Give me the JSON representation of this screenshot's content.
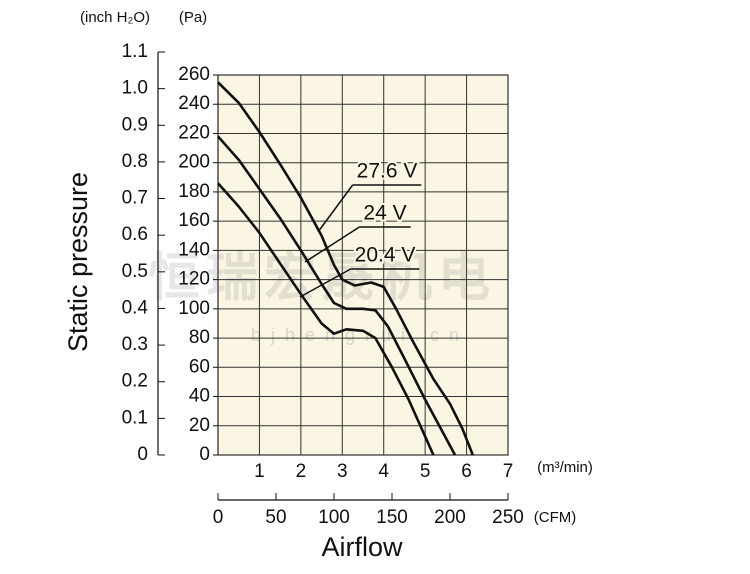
{
  "chart_data": {
    "type": "line",
    "y_label": "Static pressure",
    "x_label": "Airflow",
    "y_unit": "(Pa)",
    "y2_unit": "(inch H₂O)",
    "x_unit": "(m³/min)",
    "x2_unit": "(CFM)",
    "watermark": "恒瑞宏晟机电",
    "watermark_url": "bjhengrui.cn",
    "xlim": [
      0,
      7
    ],
    "xticks": [
      1,
      2,
      3,
      4,
      5,
      6,
      7
    ],
    "x2lim": [
      0,
      250
    ],
    "x2ticks": [
      0,
      50,
      100,
      150,
      200,
      250
    ],
    "ylim": [
      0,
      260
    ],
    "yticks": [
      0,
      20,
      40,
      60,
      80,
      100,
      120,
      140,
      160,
      180,
      200,
      220,
      240,
      260
    ],
    "y2lim": [
      0,
      1.1
    ],
    "y2ticks": [
      0,
      0.1,
      0.2,
      0.3,
      0.4,
      0.5,
      0.6,
      0.7,
      0.8,
      0.9,
      {
        "value": 1,
        "label": "1.0"
      },
      1.1
    ],
    "grid": true,
    "background": "#faf6e3",
    "color": "#111111",
    "series": [
      {
        "name": "27.6 V",
        "x": [
          0,
          0.5,
          1,
          1.5,
          2,
          2.5,
          2.8,
          3,
          3.3,
          3.7,
          4,
          4.3,
          4.7,
          5.2,
          5.6,
          5.9,
          6.15
        ],
        "values": [
          255,
          241,
          221,
          199,
          176,
          150,
          130,
          120,
          116,
          118,
          115,
          100,
          78,
          52,
          35,
          18,
          0
        ]
      },
      {
        "name": "24 V",
        "x": [
          0,
          0.5,
          1,
          1.5,
          2,
          2.5,
          2.8,
          3.1,
          3.5,
          3.8,
          4.1,
          4.5,
          5,
          5.4,
          5.72
        ],
        "values": [
          218,
          202,
          182,
          162,
          140,
          117,
          104,
          100,
          100,
          99,
          88,
          66,
          38,
          17,
          0
        ]
      },
      {
        "name": "20.4 V",
        "x": [
          0,
          0.5,
          1,
          1.5,
          2,
          2.5,
          2.8,
          3.1,
          3.5,
          3.8,
          4.2,
          4.6,
          4.9,
          5.2
        ],
        "values": [
          186,
          170,
          152,
          131,
          110,
          90,
          83,
          86,
          85,
          80,
          60,
          38,
          19,
          0
        ]
      }
    ]
  }
}
